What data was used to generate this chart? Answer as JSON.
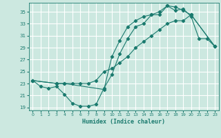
{
  "xlabel": "Humidex (Indice chaleur)",
  "bg_color": "#cce8e0",
  "grid_color": "#ffffff",
  "line_color": "#1a7a6e",
  "xlim": [
    -0.5,
    23.5
  ],
  "ylim": [
    18.5,
    36.5
  ],
  "xticks": [
    0,
    1,
    2,
    3,
    4,
    5,
    6,
    7,
    8,
    9,
    10,
    11,
    12,
    13,
    14,
    15,
    16,
    17,
    18,
    19,
    20,
    21,
    22,
    23
  ],
  "yticks": [
    19,
    21,
    23,
    25,
    27,
    29,
    31,
    33,
    35
  ],
  "curve1_x": [
    0,
    1,
    2,
    3,
    4,
    5,
    6,
    7,
    8,
    9,
    10,
    11,
    12,
    13,
    14,
    15,
    16,
    17,
    18,
    19,
    20,
    21,
    22,
    23
  ],
  "curve1_y": [
    23.5,
    22.5,
    22.2,
    22.5,
    21.2,
    19.7,
    19.2,
    19.2,
    19.5,
    22.2,
    24.5,
    28.0,
    30.5,
    32.5,
    33.0,
    34.5,
    34.5,
    36.0,
    35.2,
    35.5,
    34.2,
    30.5,
    30.5,
    29.2
  ],
  "curve2_x": [
    0,
    3,
    4,
    5,
    6,
    7,
    8,
    9,
    10,
    11,
    12,
    13,
    14,
    15,
    16,
    17,
    18,
    19,
    20,
    23
  ],
  "curve2_y": [
    23.5,
    23.0,
    23.0,
    23.0,
    23.0,
    23.0,
    23.5,
    25.0,
    25.5,
    26.5,
    27.5,
    29.0,
    30.0,
    31.0,
    32.0,
    33.0,
    33.5,
    33.5,
    34.5,
    29.2
  ],
  "curve3_x": [
    0,
    3,
    4,
    9,
    10,
    11,
    12,
    13,
    14,
    15,
    16,
    17,
    18,
    19,
    20,
    23
  ],
  "curve3_y": [
    23.5,
    23.0,
    23.0,
    22.0,
    27.5,
    30.2,
    32.5,
    33.5,
    34.2,
    34.5,
    35.0,
    36.0,
    35.8,
    35.2,
    34.5,
    29.2
  ]
}
